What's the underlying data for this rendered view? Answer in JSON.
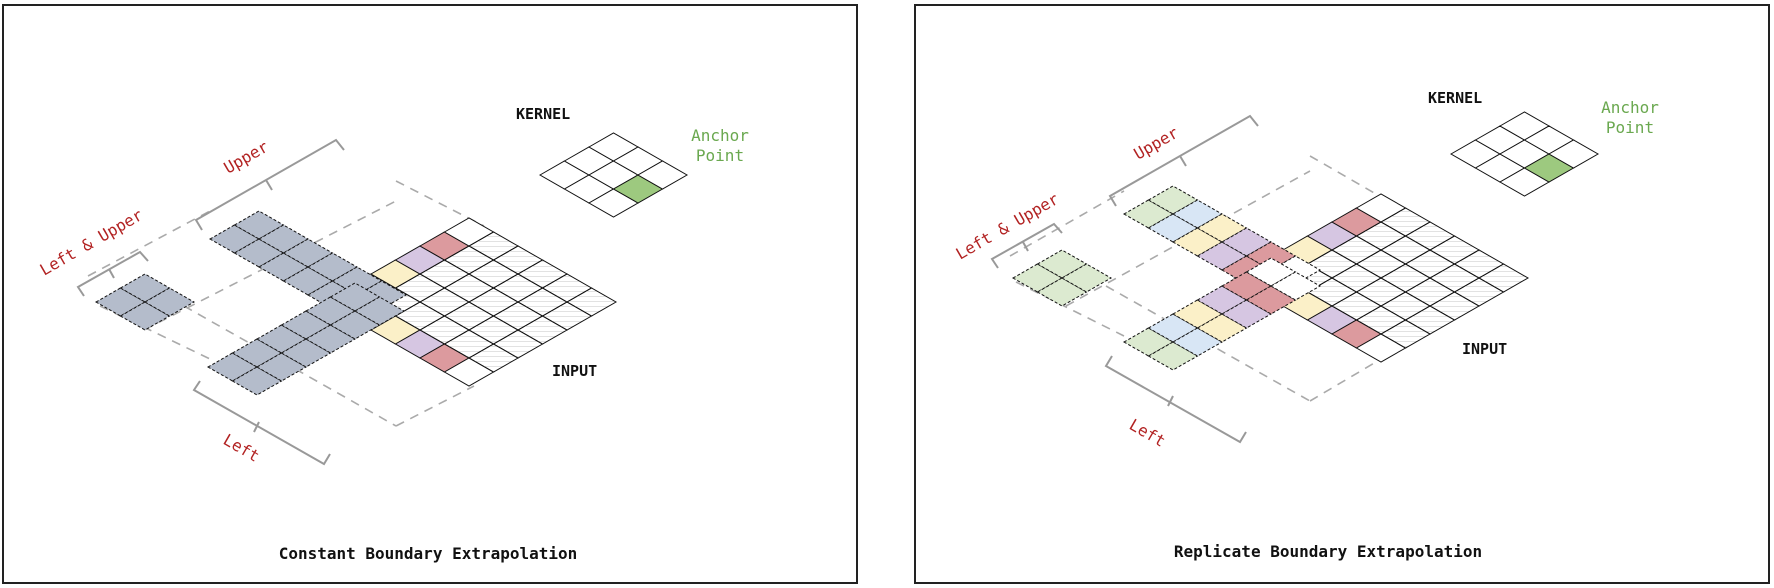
{
  "panels": [
    {
      "caption": "Constant Boundary Extrapolation",
      "kernel_label": "KERNEL",
      "anchor_label_line1": "Anchor",
      "anchor_label_line2": "Point",
      "input_label": "INPUT",
      "region_left_upper": "Left & Upper",
      "region_upper": "Upper",
      "region_left": "Left"
    },
    {
      "caption": "Replicate Boundary Extrapolation",
      "kernel_label": "KERNEL",
      "anchor_label_line1": "Anchor",
      "anchor_label_line2": "Point",
      "input_label": "INPUT",
      "region_left_upper": "Left & Upper",
      "region_upper": "Upper",
      "region_left": "Left"
    }
  ],
  "colors": {
    "constant_fill": "#b4bccb",
    "anchor": "#9dc97f",
    "green": "#dcead0",
    "blue": "#d8e6f5",
    "yellow": "#fbf0c8",
    "purple": "#d6c6e2",
    "red": "#dc9a9e",
    "hatch": "#cfcfcf"
  }
}
